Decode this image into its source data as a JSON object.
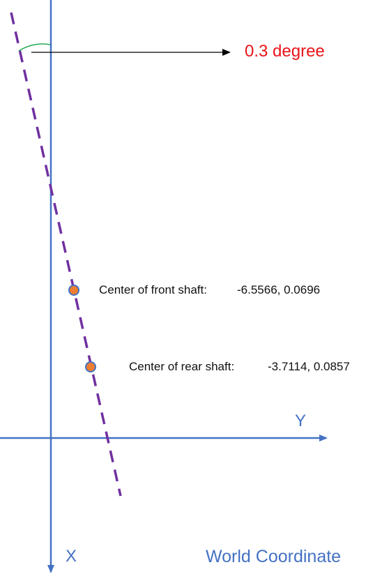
{
  "angle_label": "0.3 degree",
  "axes": {
    "x_label": "X",
    "y_label": "Y",
    "axis_color": "#4472c4"
  },
  "frame_label": "World Coordinate",
  "points": {
    "front": {
      "label": "Center of front shaft:",
      "value": "-6.5566, 0.0696"
    },
    "rear": {
      "label": "Center of rear shaft:",
      "value": "-3.7114, 0.0857"
    }
  },
  "colors": {
    "vehicle_axis_line": "#7030a0",
    "point_fill": "#ed7d31",
    "point_stroke": "#4472c4",
    "angle_arc": "#22aa55",
    "angle_text": "#e8141a",
    "leader_arrow": "#000000"
  }
}
